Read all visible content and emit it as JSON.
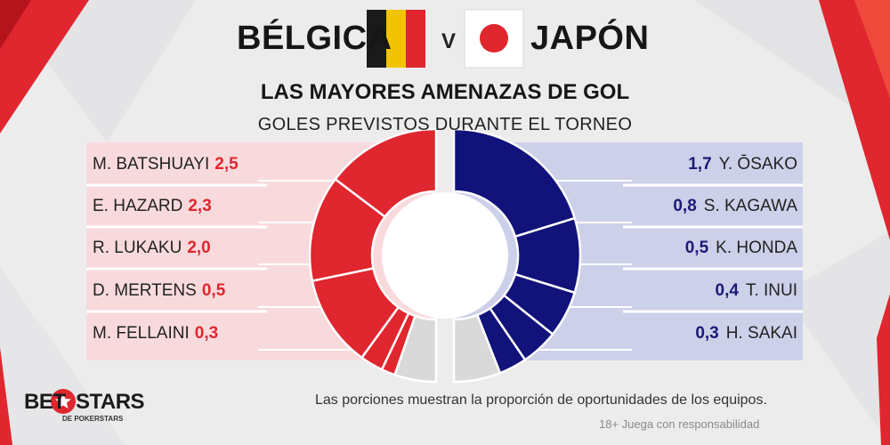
{
  "header": {
    "team_left": "BÉLGICA",
    "vs": "V",
    "team_right": "JAPÓN",
    "title": "LAS MAYORES AMENAZAS DE GOL",
    "subtitle": "GOLES PREVISTOS DURANTE EL TORNEO"
  },
  "colors": {
    "belgium": "#e0262e",
    "japan": "#11127a",
    "remainder": "#d9d9d9",
    "panel_left": "#f8dadd",
    "panel_right": "#cdd0e9"
  },
  "chart_data": {
    "type": "pie",
    "title": "LAS MAYORES AMENAZAS DE GOL",
    "subtitle": "GOLES PREVISTOS DURANTE EL TORNEO",
    "series": [
      {
        "name": "BÉLGICA",
        "players": [
          "M. BATSHUAYI",
          "E. HAZARD",
          "R. LUKAKU",
          "D. MERTENS",
          "M. FELLAINI"
        ],
        "labels": [
          "2,5",
          "2,3",
          "2,0",
          "0,5",
          "0,3"
        ],
        "values": [
          2.5,
          2.3,
          2.0,
          0.5,
          0.3
        ],
        "remainder": 0.9
      },
      {
        "name": "JAPÓN",
        "players": [
          "Y. ŌSAKO",
          "S. KAGAWA",
          "K. HONDA",
          "T. INUI",
          "H. SAKAI"
        ],
        "labels": [
          "1,7",
          "0,8",
          "0,5",
          "0,4",
          "0,3"
        ],
        "values": [
          1.7,
          0.8,
          0.5,
          0.4,
          0.3
        ],
        "remainder": 0.5
      }
    ]
  },
  "footer": {
    "note": "Las porciones muestran la proporción de oportunidades de los equipos.",
    "disclaimer": "18+ Juega con responsabilidad",
    "logo_bet": "BET",
    "logo_stars": "STARS",
    "logo_sub": "DE POKERSTARS"
  }
}
